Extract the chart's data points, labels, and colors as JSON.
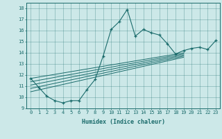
{
  "title": "",
  "xlabel": "Humidex (Indice chaleur)",
  "bg_color": "#cce8e8",
  "line_color": "#1a6b6b",
  "xlim": [
    -0.5,
    23.5
  ],
  "ylim": [
    9,
    18.5
  ],
  "xticks": [
    0,
    1,
    2,
    3,
    4,
    5,
    6,
    7,
    8,
    9,
    10,
    11,
    12,
    13,
    14,
    15,
    16,
    17,
    18,
    19,
    20,
    21,
    22,
    23
  ],
  "yticks": [
    9,
    10,
    11,
    12,
    13,
    14,
    15,
    16,
    17,
    18
  ],
  "series": [
    [
      0,
      11.7
    ],
    [
      1,
      10.9
    ],
    [
      2,
      10.1
    ],
    [
      3,
      9.7
    ],
    [
      4,
      9.5
    ],
    [
      5,
      9.7
    ],
    [
      6,
      9.7
    ],
    [
      7,
      10.7
    ],
    [
      8,
      11.6
    ],
    [
      9,
      13.7
    ],
    [
      10,
      16.1
    ],
    [
      11,
      16.8
    ],
    [
      12,
      17.9
    ],
    [
      13,
      15.5
    ],
    [
      14,
      16.1
    ],
    [
      15,
      15.8
    ],
    [
      16,
      15.6
    ],
    [
      17,
      14.8
    ],
    [
      18,
      13.9
    ],
    [
      19,
      14.2
    ],
    [
      20,
      14.4
    ],
    [
      21,
      14.5
    ],
    [
      22,
      14.3
    ],
    [
      23,
      15.1
    ]
  ],
  "linear_lines": [
    [
      [
        0,
        11.7
      ],
      [
        19,
        14.0
      ]
    ],
    [
      [
        0,
        11.4
      ],
      [
        19,
        13.9
      ]
    ],
    [
      [
        0,
        11.1
      ],
      [
        19,
        13.8
      ]
    ],
    [
      [
        0,
        10.8
      ],
      [
        19,
        13.7
      ]
    ],
    [
      [
        0,
        10.5
      ],
      [
        19,
        13.6
      ]
    ]
  ]
}
